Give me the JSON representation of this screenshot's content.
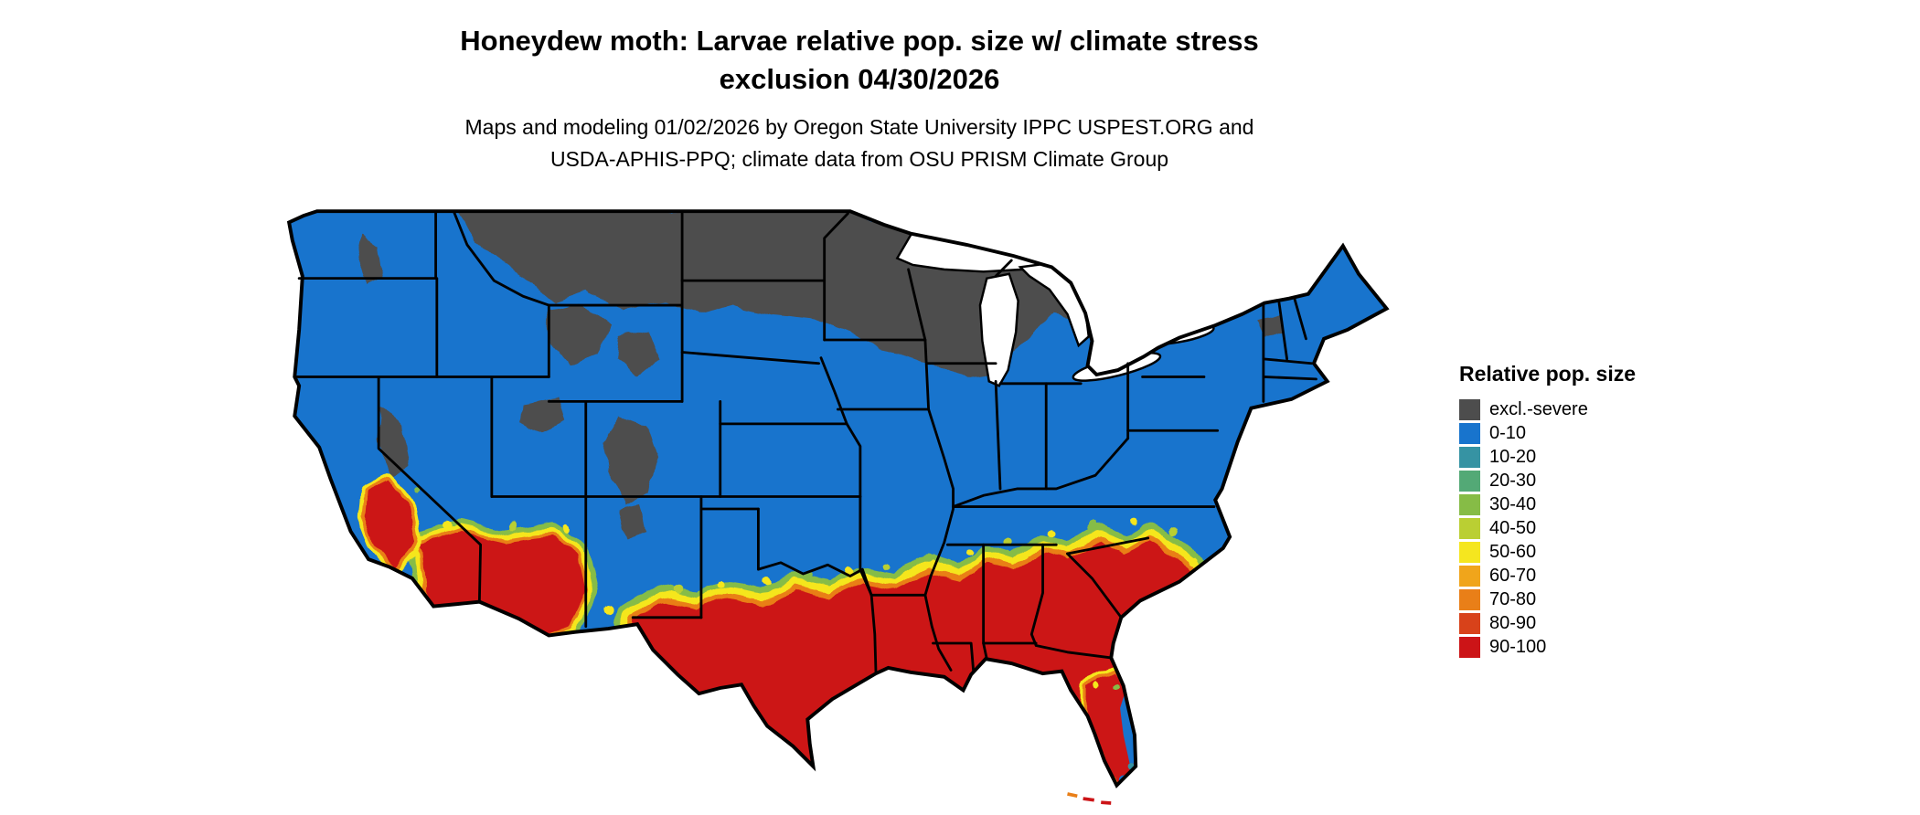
{
  "page": {
    "background": "#FFFFFF"
  },
  "title": {
    "line1": "Honeydew moth: Larvae relative pop. size w/ climate stress",
    "line2": "exclusion 04/30/2026"
  },
  "subtitle": {
    "line1": "Maps and modeling 01/02/2026 by Oregon State University IPPC USPEST.ORG and",
    "line2": "USDA-APHIS-PPQ; climate data from OSU PRISM Climate Group"
  },
  "legend": {
    "title": "Relative pop. size",
    "items": [
      {
        "label": "excl.-severe",
        "color": "#4D4D4D"
      },
      {
        "label": "0-10",
        "color": "#1874CD"
      },
      {
        "label": "10-20",
        "color": "#3693A3"
      },
      {
        "label": "20-30",
        "color": "#53A976"
      },
      {
        "label": "30-40",
        "color": "#86BC46"
      },
      {
        "label": "40-50",
        "color": "#BACF33"
      },
      {
        "label": "50-60",
        "color": "#F5E61F"
      },
      {
        "label": "60-70",
        "color": "#F0A51B"
      },
      {
        "label": "70-80",
        "color": "#E97F18"
      },
      {
        "label": "80-90",
        "color": "#D8421A"
      },
      {
        "label": "90-100",
        "color": "#CC1417"
      }
    ]
  },
  "map": {
    "kind": "Continental US raster suitability map",
    "base_class": "0-10",
    "base_color": "#1874CD",
    "regions_shown": [
      "excl.-severe (dark gray) across Montana, North Dakota, northern Minnesota, northern Wisconsin, northern Michigan and high Rockies / Sierra patches",
      "90-100 (red) across southern Texas, Gulf Coast states, southern Georgia and coastal South Carolina, the Florida peninsula, and low deserts of southern California / Arizona",
      "yellow-green-orange transition band between the blue (0-10) zone and the red (90-100) zone"
    ]
  }
}
